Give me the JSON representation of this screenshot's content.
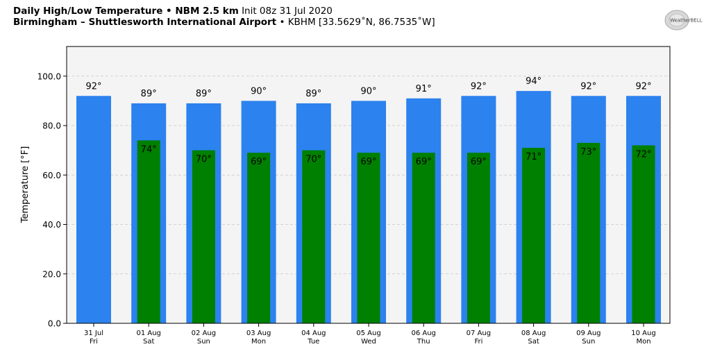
{
  "header": {
    "title_bold": "Daily High/Low Temperature • NBM 2.5 km",
    "init": "Init 08z 31 Jul 2020",
    "location_bold": "Birmingham – Shuttlesworth International Airport",
    "station": "• KBHM [33.5629˚N, 86.7535˚W]"
  },
  "logo": {
    "text": "WeatherBELL"
  },
  "colors": {
    "high": "#2c82ee",
    "low": "#008000",
    "plot_bg": "#f4f4f4"
  },
  "chart_data": {
    "type": "bar",
    "title": "Daily High/Low Temperature • NBM 2.5 km",
    "ylabel": "Temperature [°F]",
    "ylim": [
      0,
      112
    ],
    "yticks": [
      0,
      20,
      40,
      60,
      80,
      100
    ],
    "ytick_labels": [
      "0.0",
      "20.0",
      "40.0",
      "60.0",
      "80.0",
      "100.0"
    ],
    "grid": true,
    "categories": [
      {
        "date": "31 Jul",
        "day": "Fri"
      },
      {
        "date": "01 Aug",
        "day": "Sat"
      },
      {
        "date": "02 Aug",
        "day": "Sun"
      },
      {
        "date": "03 Aug",
        "day": "Mon"
      },
      {
        "date": "04 Aug",
        "day": "Tue"
      },
      {
        "date": "05 Aug",
        "day": "Wed"
      },
      {
        "date": "06 Aug",
        "day": "Thu"
      },
      {
        "date": "07 Aug",
        "day": "Fri"
      },
      {
        "date": "08 Aug",
        "day": "Sat"
      },
      {
        "date": "09 Aug",
        "day": "Sun"
      },
      {
        "date": "10 Aug",
        "day": "Mon"
      }
    ],
    "series": [
      {
        "values": [
          92,
          89,
          89,
          90,
          89,
          90,
          91,
          92,
          94,
          92,
          92
        ]
      },
      {
        "values": [
          null,
          74,
          70,
          69,
          70,
          69,
          69,
          69,
          71,
          73,
          72
        ]
      }
    ]
  }
}
